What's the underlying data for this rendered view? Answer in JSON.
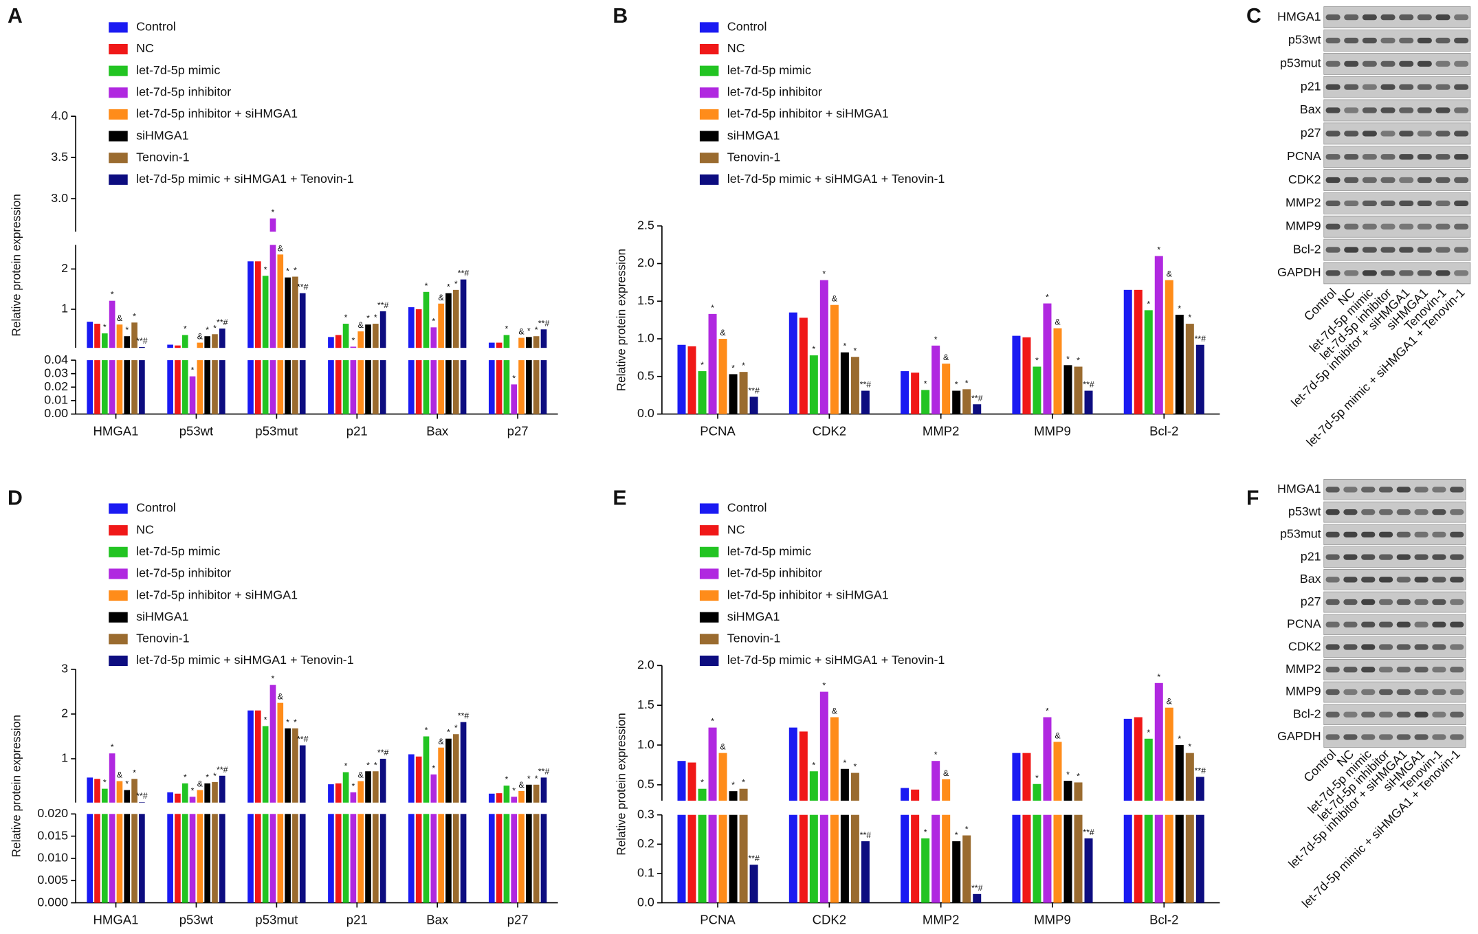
{
  "chart_data": [
    {
      "type": "bar",
      "panel": "A",
      "ylabel": "Relative protein expression",
      "categories": [
        "HMGA1",
        "p53wt",
        "p53mut",
        "p21",
        "Bax",
        "p27"
      ],
      "axis_segments": [
        {
          "ylim": [
            0,
            0.04
          ],
          "yticks": [
            {
              "value": 0,
              "label": "0.00"
            },
            {
              "value": 0.01,
              "label": "0.01"
            },
            {
              "value": 0.02,
              "label": "0.02"
            },
            {
              "value": 0.03,
              "label": "0.03"
            },
            {
              "value": 0.04,
              "label": "0.04"
            }
          ]
        },
        {
          "ylim": [
            0.04,
            2.6
          ],
          "yticks": [
            1,
            2
          ]
        },
        {
          "ylim": [
            2.6,
            4.0
          ],
          "yticks": [
            {
              "value": 3.0,
              "label": "3.0"
            },
            {
              "value": 3.5,
              "label": "3.5"
            },
            {
              "value": 4.0,
              "label": "4.0"
            }
          ]
        }
      ],
      "series": [
        {
          "name": "Control",
          "color": "#1a1af2",
          "values": [
            0.69,
            0.12,
            2.19,
            0.31,
            1.05,
            0.17
          ],
          "markers": [
            null,
            null,
            null,
            null,
            null,
            null
          ]
        },
        {
          "name": "NC",
          "color": "#f01818",
          "values": [
            0.64,
            0.1,
            2.19,
            0.36,
            1.0,
            0.17
          ],
          "markers": [
            null,
            null,
            null,
            null,
            null,
            null
          ]
        },
        {
          "name": "let-7d-5p mimic",
          "color": "#22c422",
          "values": [
            0.4,
            0.36,
            1.83,
            0.64,
            1.43,
            0.36
          ],
          "markers": [
            "*",
            "*",
            "*",
            "*",
            "*",
            "*"
          ]
        },
        {
          "name": "let-7d-5p inhibitor",
          "color": "#b028e0",
          "values": [
            1.21,
            0.028,
            2.76,
            0.07,
            0.55,
            0.022
          ],
          "markers": [
            "*",
            "*",
            "*",
            "*",
            "*",
            "*"
          ]
        },
        {
          "name": "let-7d-5p inhibitor + siHMGA1",
          "color": "#ff8c1a",
          "values": [
            0.62,
            0.17,
            2.36,
            0.45,
            1.14,
            0.29
          ],
          "markers": [
            "&",
            "&",
            "&",
            "&",
            "&",
            "&"
          ]
        },
        {
          "name": "siHMGA1",
          "color": "#000000",
          "values": [
            0.33,
            0.33,
            1.79,
            0.62,
            1.4,
            0.31
          ],
          "markers": [
            "*",
            "*",
            "*",
            "*",
            "*",
            "*"
          ]
        },
        {
          "name": "Tenovin-1",
          "color": "#9a6b2f",
          "values": [
            0.67,
            0.38,
            1.81,
            0.64,
            1.48,
            0.33
          ],
          "markers": [
            "*",
            "*",
            "*",
            "*",
            "*",
            "*"
          ]
        },
        {
          "name": "let-7d-5p mimic + siHMGA1 + Tenovin-1",
          "color": "#0d0d80",
          "values": [
            0.06,
            0.52,
            1.4,
            0.95,
            1.74,
            0.5
          ],
          "markers": [
            "**#",
            "**#",
            "**#",
            "**#",
            "**#",
            "**#"
          ]
        }
      ]
    },
    {
      "type": "bar",
      "panel": "B",
      "ylabel": "Relative protein expression",
      "categories": [
        "PCNA",
        "CDK2",
        "MMP2",
        "MMP9",
        "Bcl-2"
      ],
      "ylim": [
        0,
        2.5
      ],
      "yticks": [
        {
          "value": 0,
          "label": "0.0"
        },
        {
          "value": 0.5,
          "label": "0.5"
        },
        {
          "value": 1,
          "label": "1.0"
        },
        {
          "value": 1.5,
          "label": "1.5"
        },
        {
          "value": 2,
          "label": "2.0"
        },
        {
          "value": 2.5,
          "label": "2.5"
        }
      ],
      "series": [
        {
          "name": "Control",
          "color": "#1a1af2",
          "values": [
            0.92,
            1.35,
            0.57,
            1.04,
            1.65
          ],
          "markers": [
            null,
            null,
            null,
            null,
            null
          ]
        },
        {
          "name": "NC",
          "color": "#f01818",
          "values": [
            0.9,
            1.28,
            0.55,
            1.02,
            1.65
          ],
          "markers": [
            null,
            null,
            null,
            null,
            null
          ]
        },
        {
          "name": "let-7d-5p mimic",
          "color": "#22c422",
          "values": [
            0.57,
            0.78,
            0.32,
            0.63,
            1.38
          ],
          "markers": [
            "*",
            "*",
            "*",
            "*",
            "*"
          ]
        },
        {
          "name": "let-7d-5p inhibitor",
          "color": "#b028e0",
          "values": [
            1.33,
            1.78,
            0.91,
            1.47,
            2.1
          ],
          "markers": [
            "*",
            "*",
            "*",
            "*",
            "*"
          ]
        },
        {
          "name": "let-7d-5p inhibitor + siHMGA1",
          "color": "#ff8c1a",
          "values": [
            1.0,
            1.45,
            0.67,
            1.14,
            1.78
          ],
          "markers": [
            "&",
            "&",
            "&",
            "&",
            "&"
          ]
        },
        {
          "name": "siHMGA1",
          "color": "#000000",
          "values": [
            0.53,
            0.82,
            0.31,
            0.65,
            1.32
          ],
          "markers": [
            "*",
            "*",
            "*",
            "*",
            "*"
          ]
        },
        {
          "name": "Tenovin-1",
          "color": "#9a6b2f",
          "values": [
            0.56,
            0.76,
            0.33,
            0.63,
            1.2
          ],
          "markers": [
            "*",
            "*",
            "*",
            "*",
            "*"
          ]
        },
        {
          "name": "let-7d-5p mimic + siHMGA1 + Tenovin-1",
          "color": "#0d0d80",
          "values": [
            0.23,
            0.31,
            0.13,
            0.31,
            0.92
          ],
          "markers": [
            "**#",
            "**#",
            "**#",
            "**#",
            "**#"
          ]
        }
      ]
    },
    {
      "type": "bar",
      "panel": "D",
      "ylabel": "Relative protein expression",
      "categories": [
        "HMGA1",
        "p53wt",
        "p53mut",
        "p21",
        "Bax",
        "p27"
      ],
      "axis_segments": [
        {
          "ylim": [
            0,
            0.02
          ],
          "yticks": [
            {
              "value": 0,
              "label": "0.000"
            },
            {
              "value": 0.005,
              "label": "0.005"
            },
            {
              "value": 0.01,
              "label": "0.010"
            },
            {
              "value": 0.015,
              "label": "0.015"
            },
            {
              "value": 0.02,
              "label": "0.020"
            }
          ]
        },
        {
          "ylim": [
            0.02,
            3
          ],
          "yticks": [
            1,
            2,
            3
          ]
        }
      ],
      "series": [
        {
          "name": "Control",
          "color": "#1a1af2",
          "values": [
            0.58,
            0.25,
            2.08,
            0.43,
            1.1,
            0.22
          ],
          "markers": [
            null,
            null,
            null,
            null,
            null,
            null
          ]
        },
        {
          "name": "NC",
          "color": "#f01818",
          "values": [
            0.55,
            0.22,
            2.08,
            0.45,
            1.05,
            0.23
          ],
          "markers": [
            null,
            null,
            null,
            null,
            null,
            null
          ]
        },
        {
          "name": "let-7d-5p mimic",
          "color": "#22c422",
          "values": [
            0.33,
            0.45,
            1.73,
            0.7,
            1.5,
            0.4
          ],
          "markers": [
            "*",
            "*",
            "*",
            "*",
            "*",
            "*"
          ]
        },
        {
          "name": "let-7d-5p inhibitor",
          "color": "#b028e0",
          "values": [
            1.12,
            0.15,
            2.65,
            0.25,
            0.65,
            0.15
          ],
          "markers": [
            "*",
            "*",
            "*",
            "*",
            "*",
            "*"
          ]
        },
        {
          "name": "let-7d-5p inhibitor + siHMGA1",
          "color": "#ff8c1a",
          "values": [
            0.5,
            0.3,
            2.25,
            0.5,
            1.25,
            0.28
          ],
          "markers": [
            "&",
            "&",
            "&",
            "&",
            "&",
            "&"
          ]
        },
        {
          "name": "siHMGA1",
          "color": "#000000",
          "values": [
            0.3,
            0.45,
            1.68,
            0.72,
            1.45,
            0.42
          ],
          "markers": [
            "*",
            "*",
            "*",
            "*",
            "*",
            "*"
          ]
        },
        {
          "name": "Tenovin-1",
          "color": "#9a6b2f",
          "values": [
            0.55,
            0.48,
            1.68,
            0.72,
            1.55,
            0.42
          ],
          "markers": [
            "*",
            "*",
            "*",
            "*",
            "*",
            "*"
          ]
        },
        {
          "name": "let-7d-5p mimic + siHMGA1 + Tenovin-1",
          "color": "#0d0d80",
          "values": [
            0.03,
            0.62,
            1.3,
            1.0,
            1.82,
            0.58
          ],
          "markers": [
            "**#",
            "**#",
            "**#",
            "**#",
            "**#",
            "**#"
          ]
        }
      ]
    },
    {
      "type": "bar",
      "panel": "E",
      "ylabel": "Relative protein expression",
      "categories": [
        "PCNA",
        "CDK2",
        "MMP2",
        "MMP9",
        "Bcl-2"
      ],
      "axis_segments": [
        {
          "ylim": [
            0,
            0.3
          ],
          "yticks": [
            {
              "value": 0,
              "label": "0.0"
            },
            {
              "value": 0.1,
              "label": "0.1"
            },
            {
              "value": 0.2,
              "label": "0.2"
            },
            {
              "value": 0.3,
              "label": "0.3"
            }
          ]
        },
        {
          "ylim": [
            0.3,
            2.0
          ],
          "yticks": [
            {
              "value": 0.5,
              "label": "0.5"
            },
            {
              "value": 1,
              "label": "1.0"
            },
            {
              "value": 1.5,
              "label": "1.5"
            },
            {
              "value": 2,
              "label": "2.0"
            }
          ]
        }
      ],
      "series": [
        {
          "name": "Control",
          "color": "#1a1af2",
          "values": [
            0.8,
            1.22,
            0.46,
            0.9,
            1.33
          ],
          "markers": [
            null,
            null,
            null,
            null,
            null
          ]
        },
        {
          "name": "NC",
          "color": "#f01818",
          "values": [
            0.78,
            1.17,
            0.44,
            0.9,
            1.35
          ],
          "markers": [
            null,
            null,
            null,
            null,
            null
          ]
        },
        {
          "name": "let-7d-5p mimic",
          "color": "#22c422",
          "values": [
            0.45,
            0.67,
            0.22,
            0.51,
            1.08
          ],
          "markers": [
            "*",
            "*",
            "*",
            "*",
            "*"
          ]
        },
        {
          "name": "let-7d-5p inhibitor",
          "color": "#b028e0",
          "values": [
            1.22,
            1.67,
            0.8,
            1.35,
            1.78
          ],
          "markers": [
            "*",
            "*",
            "*",
            "*",
            "*"
          ]
        },
        {
          "name": "let-7d-5p inhibitor + siHMGA1",
          "color": "#ff8c1a",
          "values": [
            0.9,
            1.35,
            0.57,
            1.04,
            1.47
          ],
          "markers": [
            "&",
            "&",
            "&",
            "&",
            "&"
          ]
        },
        {
          "name": "siHMGA1",
          "color": "#000000",
          "values": [
            0.42,
            0.7,
            0.21,
            0.55,
            1.0
          ],
          "markers": [
            "*",
            "*",
            "*",
            "*",
            "*"
          ]
        },
        {
          "name": "Tenovin-1",
          "color": "#9a6b2f",
          "values": [
            0.45,
            0.65,
            0.23,
            0.53,
            0.9
          ],
          "markers": [
            "*",
            "*",
            "*",
            "*",
            "*"
          ]
        },
        {
          "name": "let-7d-5p mimic + siHMGA1 + Tenovin-1",
          "color": "#0d0d80",
          "values": [
            0.13,
            0.21,
            0.03,
            0.22,
            0.6
          ],
          "markers": [
            "**#",
            "**#",
            "**#",
            "**#",
            "**#"
          ]
        }
      ]
    }
  ],
  "blots": [
    {
      "panel": "C",
      "rows": [
        "HMGA1",
        "p53wt",
        "p53mut",
        "p21",
        "Bax",
        "p27",
        "PCNA",
        "CDK2",
        "MMP2",
        "MMP9",
        "Bcl-2",
        "GAPDH"
      ],
      "lanes": [
        "Control",
        "NC",
        "let-7d-5p mimic",
        "let-7d-5p inhibitor",
        "let-7d-5p inhibitor + siHMGA1",
        "siHMGA1",
        "Tenovin-1",
        "let-7d-5p mimic + siHMGA1 + Tenovin-1"
      ]
    },
    {
      "panel": "F",
      "rows": [
        "HMGA1",
        "p53wt",
        "p53mut",
        "p21",
        "Bax",
        "p27",
        "PCNA",
        "CDK2",
        "MMP2",
        "MMP9",
        "Bcl-2",
        "GAPDH"
      ],
      "lanes": [
        "Control",
        "NC",
        "let-7d-5p mimic",
        "let-7d-5p inhibitor",
        "let-7d-5p inhibitor + siHMGA1",
        "siHMGA1",
        "Tenovin-1",
        "let-7d-5p mimic + siHMGA1 + Tenovin-1"
      ]
    }
  ]
}
